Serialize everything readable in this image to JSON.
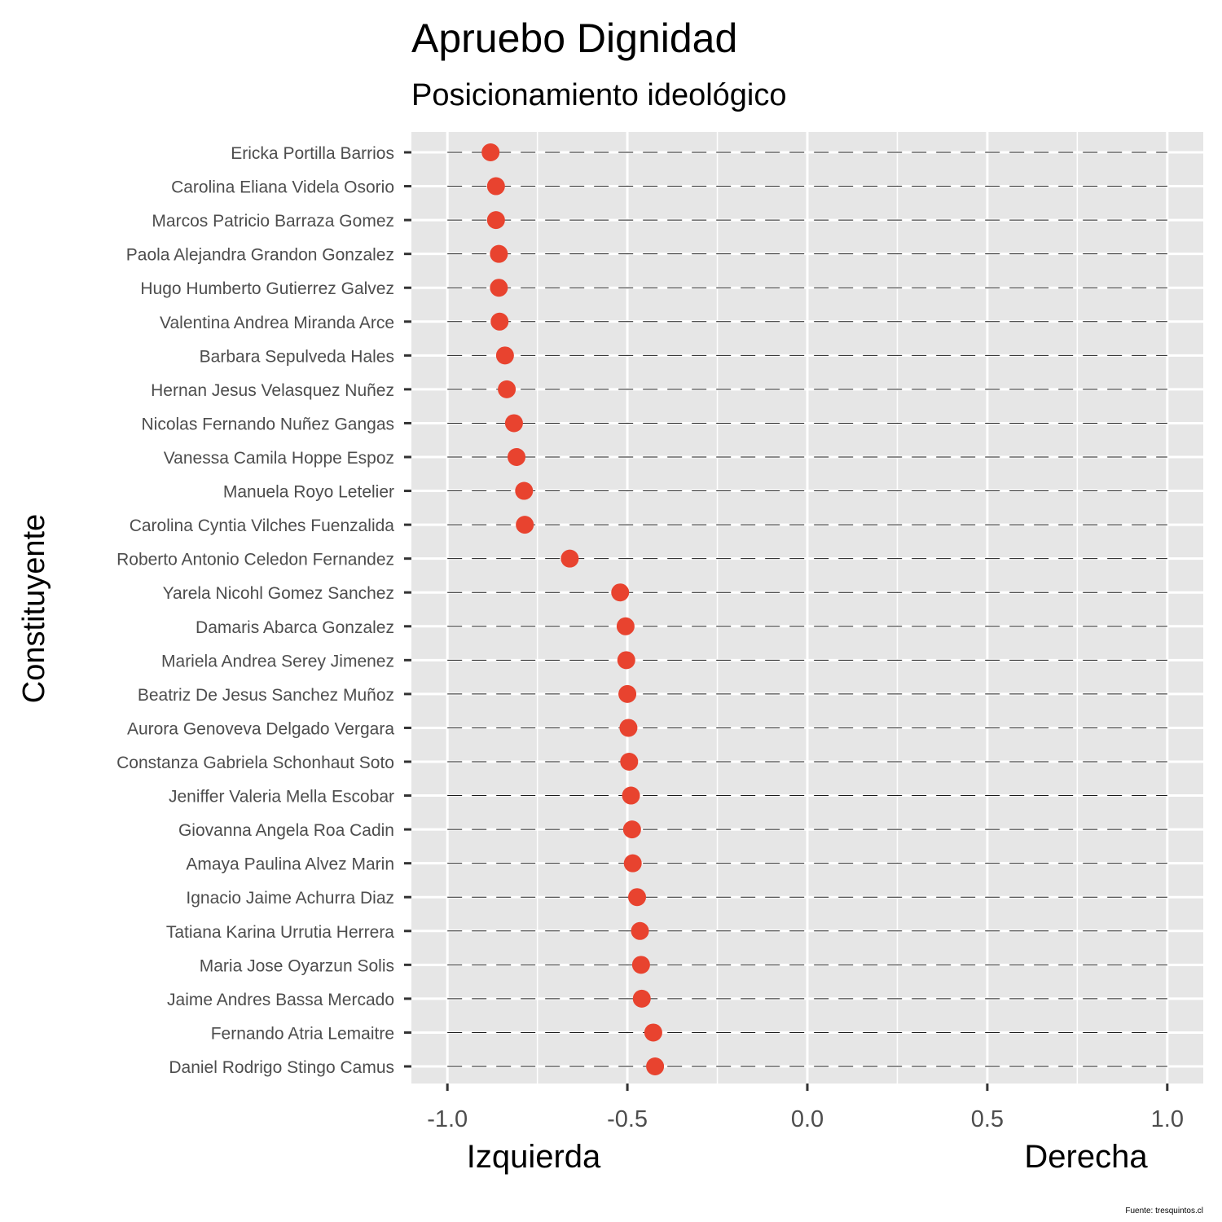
{
  "chart_data": {
    "type": "scatter",
    "title": "Apruebo Dignidad",
    "subtitle": "Posicionamiento ideológico",
    "ylabel": "Constituyente",
    "x_left_label": "Izquierda",
    "x_right_label": "Derecha",
    "caption": "Fuente: tresquintos.cl",
    "xlim": [
      -1.1,
      1.1
    ],
    "x_ticks": [
      -1.0,
      -0.5,
      0.0,
      0.5,
      1.0
    ],
    "x_tick_labels": [
      "-1.0",
      "-0.5",
      "0.0",
      "0.5",
      "1.0"
    ],
    "point_color": "#e8432f",
    "panel_color": "#e6e6e6",
    "grid": true,
    "points": [
      {
        "name": "Ericka Portilla Barrios",
        "x": -0.88
      },
      {
        "name": "Carolina Eliana Videla Osorio",
        "x": -0.865
      },
      {
        "name": "Marcos Patricio Barraza Gomez",
        "x": -0.865
      },
      {
        "name": "Paola Alejandra Grandon Gonzalez",
        "x": -0.857
      },
      {
        "name": "Hugo Humberto Gutierrez Galvez",
        "x": -0.857
      },
      {
        "name": "Valentina Andrea Miranda Arce",
        "x": -0.855
      },
      {
        "name": "Barbara Sepulveda Hales",
        "x": -0.84
      },
      {
        "name": "Hernan Jesus Velasquez Nuñez",
        "x": -0.835
      },
      {
        "name": "Nicolas Fernando Nuñez Gangas",
        "x": -0.815
      },
      {
        "name": "Vanessa Camila Hoppe Espoz",
        "x": -0.808
      },
      {
        "name": "Manuela Royo Letelier",
        "x": -0.787
      },
      {
        "name": "Carolina Cyntia Vilches Fuenzalida",
        "x": -0.785
      },
      {
        "name": "Roberto Antonio Celedon Fernandez",
        "x": -0.66
      },
      {
        "name": "Yarela Nicohl Gomez Sanchez",
        "x": -0.52
      },
      {
        "name": "Damaris Abarca Gonzalez",
        "x": -0.505
      },
      {
        "name": "Mariela Andrea Serey Jimenez",
        "x": -0.503
      },
      {
        "name": "Beatriz De Jesus Sanchez Muñoz",
        "x": -0.5
      },
      {
        "name": "Aurora Genoveva Delgado Vergara",
        "x": -0.497
      },
      {
        "name": "Constanza Gabriela Schonhaut Soto",
        "x": -0.495
      },
      {
        "name": "Jeniffer Valeria Mella Escobar",
        "x": -0.49
      },
      {
        "name": "Giovanna Angela Roa Cadin",
        "x": -0.487
      },
      {
        "name": "Amaya Paulina Alvez Marin",
        "x": -0.485
      },
      {
        "name": "Ignacio Jaime Achurra Diaz",
        "x": -0.473
      },
      {
        "name": "Tatiana Karina Urrutia Herrera",
        "x": -0.465
      },
      {
        "name": "Maria Jose Oyarzun Solis",
        "x": -0.462
      },
      {
        "name": "Jaime Andres Bassa Mercado",
        "x": -0.46
      },
      {
        "name": "Fernando Atria Lemaitre",
        "x": -0.428
      },
      {
        "name": "Daniel Rodrigo Stingo Camus",
        "x": -0.423
      }
    ]
  }
}
